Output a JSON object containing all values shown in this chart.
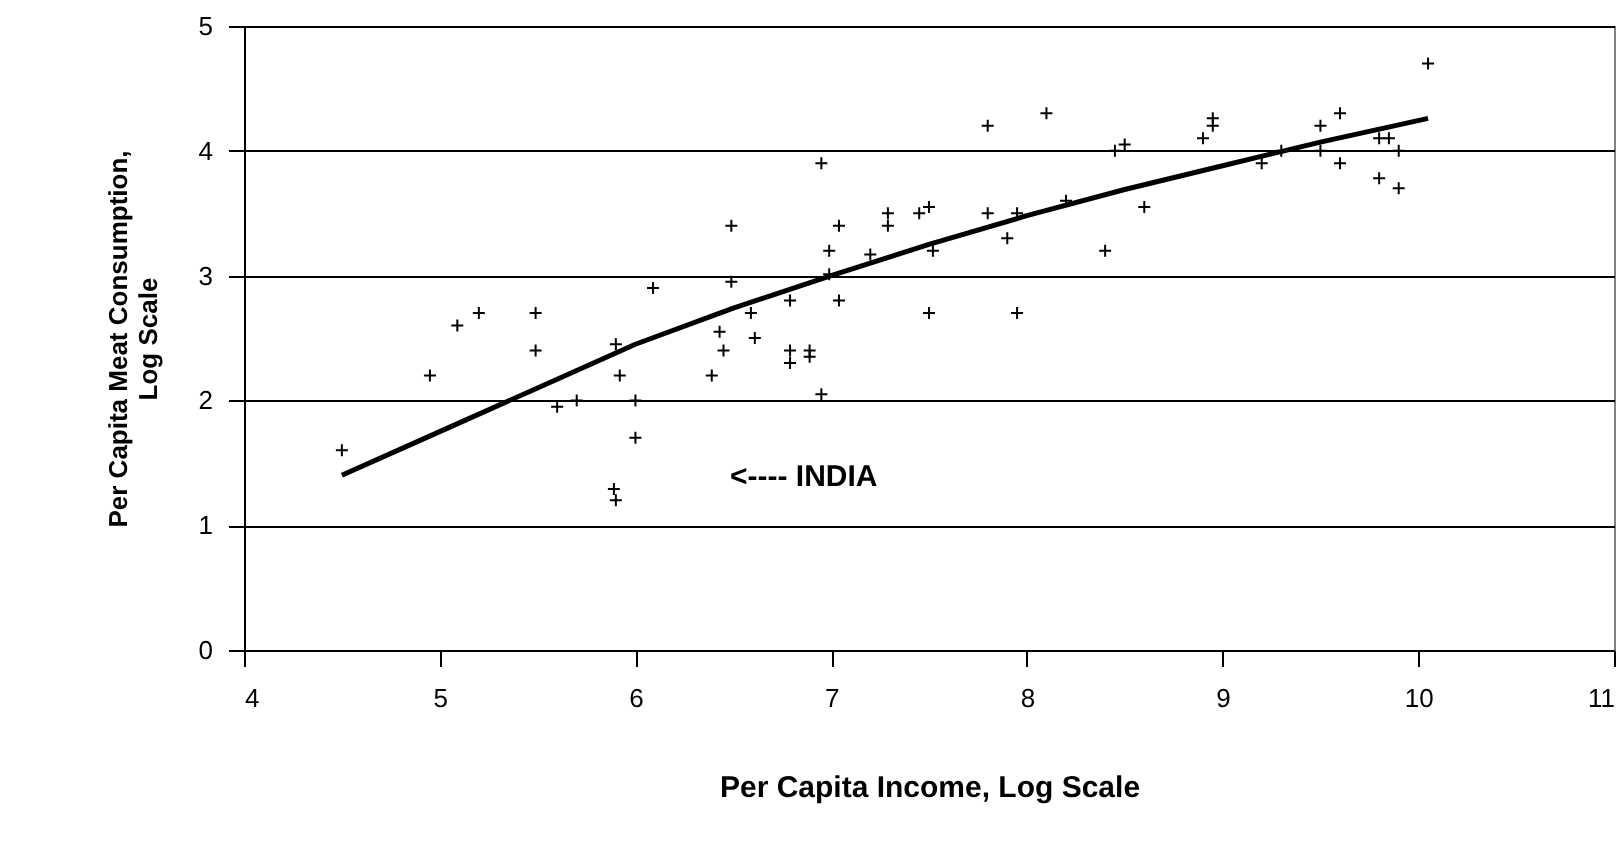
{
  "chart_data": {
    "type": "scatter",
    "xlabel": "Per Capita Income, Log Scale",
    "ylabel": "Per Capita Meat Consumption,\nLog Scale",
    "xlim": [
      4,
      11
    ],
    "xticks": [
      4,
      5,
      6,
      7,
      8,
      9,
      10,
      11
    ],
    "ylim": [
      0,
      5
    ],
    "yticks": [
      0,
      1,
      2,
      3,
      4,
      5
    ],
    "grid": "y",
    "annotations": [
      "<----  INDIA"
    ],
    "series": [
      {
        "color": "#000000",
        "marker": "cross",
        "x": [
          4.5,
          4.95,
          5.09,
          5.2,
          5.49,
          5.49,
          5.6,
          5.7,
          5.9,
          5.92,
          5.89,
          5.9,
          6.0,
          6.0,
          6.09,
          6.39,
          6.43,
          6.45,
          6.49,
          6.49,
          6.59,
          6.61,
          6.79,
          6.79,
          6.79,
          6.89,
          6.89,
          6.95,
          6.95,
          6.99,
          6.99,
          7.04,
          7.04,
          7.2,
          7.29,
          7.29,
          7.45,
          7.5,
          7.52,
          7.5,
          7.8,
          7.8,
          7.9,
          7.95,
          7.95,
          8.1,
          8.2,
          8.4,
          8.45,
          8.5,
          8.6,
          8.9,
          8.95,
          8.95,
          9.2,
          9.3,
          9.5,
          9.5,
          9.6,
          9.6,
          9.8,
          9.85,
          9.8,
          9.9,
          9.9,
          10.05
        ],
        "values": [
          1.6,
          2.2,
          2.6,
          2.7,
          2.7,
          2.4,
          1.95,
          2.0,
          2.45,
          2.2,
          1.29,
          1.2,
          2.0,
          1.7,
          2.9,
          2.2,
          2.55,
          2.4,
          3.4,
          2.95,
          2.7,
          2.5,
          2.8,
          2.4,
          2.3,
          2.4,
          2.35,
          3.9,
          2.05,
          3.2,
          3.01,
          3.4,
          2.8,
          3.17,
          3.5,
          3.4,
          3.5,
          3.55,
          3.2,
          2.7,
          4.2,
          3.5,
          3.3,
          3.5,
          2.7,
          4.3,
          3.6,
          3.2,
          4.0,
          4.05,
          3.55,
          4.1,
          4.26,
          4.2,
          3.9,
          4.0,
          4.2,
          4.0,
          4.3,
          3.9,
          4.1,
          4.1,
          3.78,
          4.0,
          3.7,
          4.7
        ]
      },
      {
        "type": "line",
        "color": "#000000",
        "line_style": "solid",
        "x": [
          4.5,
          5.0,
          5.5,
          6.0,
          6.5,
          7.0,
          7.5,
          8.0,
          8.5,
          9.0,
          9.5,
          10.05
        ],
        "values": [
          1.4,
          1.75,
          2.1,
          2.45,
          2.74,
          3.0,
          3.25,
          3.48,
          3.69,
          3.88,
          4.07,
          4.26
        ]
      }
    ]
  }
}
